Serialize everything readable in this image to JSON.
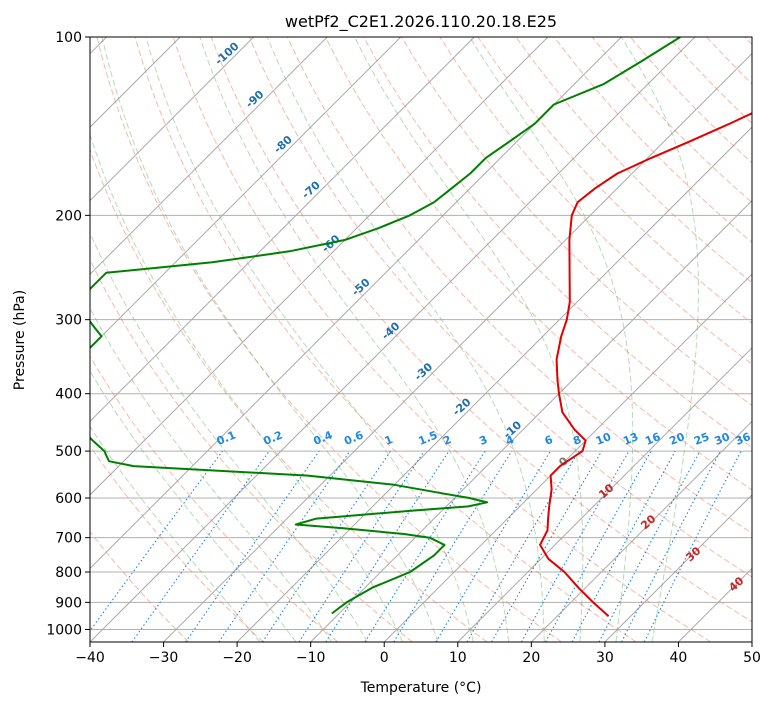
{
  "chart_data": {
    "type": "line",
    "title": "wetPf2_C2E1.2026.110.20.18.E25",
    "xlabel": "Temperature (°C)",
    "ylabel": "Pressure (hPa)",
    "xlim": [
      -40,
      50
    ],
    "ylim": [
      1050,
      100
    ],
    "x_ticks": [
      -40,
      -30,
      -20,
      -10,
      0,
      10,
      20,
      30,
      40,
      50
    ],
    "x_tick_labels": [
      "−40",
      "−30",
      "−20",
      "−10",
      "0",
      "10",
      "20",
      "30",
      "40",
      "50"
    ],
    "y_ticks": [
      100,
      200,
      300,
      400,
      500,
      600,
      700,
      800,
      900,
      1000
    ],
    "y_tick_labels": [
      "100",
      "200",
      "300",
      "400",
      "500",
      "600",
      "700",
      "800",
      "900",
      "1000"
    ],
    "skew": 1.0,
    "colors": {
      "temperature": "#e00000",
      "dewpoint": "#008000",
      "isotherm": "#aaaaaa",
      "dry_adiabat": "#f08060",
      "moist_adiabat": "#60b060",
      "mixing_ratio": "#1e88e5",
      "isotherm_label": "#1f6fb0",
      "theta_label": "#cc2222",
      "mixing_label": "#1e88e5",
      "grid": "#b0b0b0"
    },
    "series": [
      {
        "name": "Temperature",
        "points": [
          [
            100,
            -12.5
          ],
          [
            110,
            -15
          ],
          [
            120,
            -18
          ],
          [
            130,
            -20.5
          ],
          [
            140,
            -23.5
          ],
          [
            150,
            -26.5
          ],
          [
            160,
            -29.5
          ],
          [
            170,
            -32
          ],
          [
            180,
            -33
          ],
          [
            190,
            -33.5
          ],
          [
            200,
            -32.5
          ],
          [
            220,
            -29.5
          ],
          [
            250,
            -25
          ],
          [
            280,
            -21
          ],
          [
            300,
            -19
          ],
          [
            320,
            -17.5
          ],
          [
            350,
            -15
          ],
          [
            380,
            -12
          ],
          [
            400,
            -10
          ],
          [
            430,
            -7
          ],
          [
            460,
            -3
          ],
          [
            480,
            0
          ],
          [
            500,
            1
          ],
          [
            530,
            0
          ],
          [
            550,
            0
          ],
          [
            580,
            2
          ],
          [
            620,
            4
          ],
          [
            650,
            5.5
          ],
          [
            680,
            7
          ],
          [
            720,
            8
          ],
          [
            760,
            11
          ],
          [
            800,
            15
          ],
          [
            850,
            19
          ],
          [
            900,
            23
          ],
          [
            950,
            27
          ]
        ]
      },
      {
        "name": "Dewpoint",
        "points": [
          [
            100,
            -42
          ],
          [
            110,
            -44
          ],
          [
            120,
            -46
          ],
          [
            130,
            -50
          ],
          [
            140,
            -50
          ],
          [
            150,
            -51
          ],
          [
            160,
            -52
          ],
          [
            170,
            -52
          ],
          [
            180,
            -52.5
          ],
          [
            190,
            -53
          ],
          [
            200,
            -54.5
          ],
          [
            210,
            -57
          ],
          [
            220,
            -60
          ],
          [
            230,
            -66
          ],
          [
            240,
            -75
          ],
          [
            250,
            -88
          ],
          [
            260,
            -88
          ],
          [
            270,
            -88
          ],
          [
            280,
            -87.5
          ],
          [
            290,
            -86
          ],
          [
            300,
            -84
          ],
          [
            310,
            -82
          ],
          [
            320,
            -80
          ],
          [
            340,
            -80
          ],
          [
            350,
            -80
          ],
          [
            370,
            -79
          ],
          [
            400,
            -77
          ],
          [
            430,
            -73
          ],
          [
            460,
            -70
          ],
          [
            480,
            -67
          ],
          [
            500,
            -64
          ],
          [
            510,
            -63
          ],
          [
            520,
            -62
          ],
          [
            530,
            -58
          ],
          [
            550,
            -33
          ],
          [
            570,
            -20
          ],
          [
            590,
            -12
          ],
          [
            600,
            -8
          ],
          [
            610,
            -5
          ],
          [
            620,
            -7
          ],
          [
            630,
            -14
          ],
          [
            650,
            -26
          ],
          [
            665,
            -28
          ],
          [
            675,
            -21
          ],
          [
            690,
            -12
          ],
          [
            700,
            -8
          ],
          [
            720,
            -5
          ],
          [
            750,
            -5
          ],
          [
            800,
            -6
          ],
          [
            850,
            -9
          ],
          [
            900,
            -10.5
          ],
          [
            940,
            -11
          ]
        ]
      }
    ],
    "mixing_ratio_labels": [
      "0.1",
      "0.2",
      "0.4",
      "0.6",
      "1",
      "1.5",
      "2",
      "3",
      "4",
      "6",
      "8",
      "10",
      "13",
      "16",
      "20",
      "25",
      "30",
      "36"
    ],
    "isotherm_labels": [
      "-100",
      "-90",
      "-80",
      "-70",
      "-60",
      "-50",
      "-40",
      "-30",
      "-20",
      "-10"
    ],
    "dry_adiabat_labels": [
      "0",
      "10",
      "20",
      "30",
      "40"
    ]
  }
}
